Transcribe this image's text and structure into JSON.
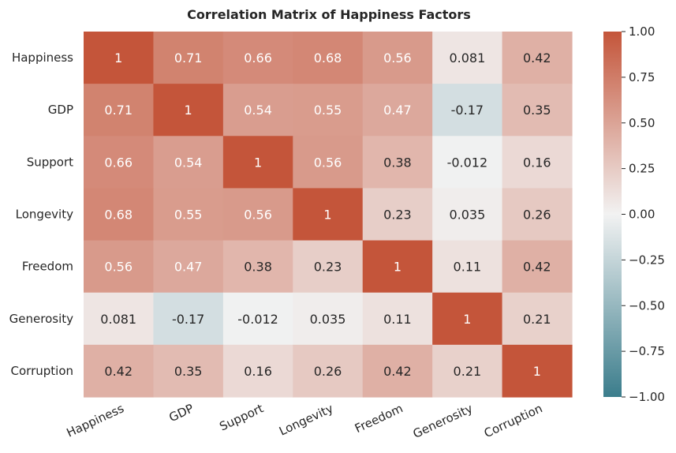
{
  "chart_data": {
    "type": "heatmap",
    "title": "Correlation Matrix of Happiness Factors",
    "rows": [
      "Happiness",
      "GDP",
      "Support",
      "Longevity",
      "Freedom",
      "Generosity",
      "Corruption"
    ],
    "columns": [
      "Happiness",
      "GDP",
      "Support",
      "Longevity",
      "Freedom",
      "Generosity",
      "Corruption"
    ],
    "values": [
      [
        1,
        0.71,
        0.66,
        0.68,
        0.56,
        0.081,
        0.42
      ],
      [
        0.71,
        1,
        0.54,
        0.55,
        0.47,
        -0.17,
        0.35
      ],
      [
        0.66,
        0.54,
        1,
        0.56,
        0.38,
        -0.012,
        0.16
      ],
      [
        0.68,
        0.55,
        0.56,
        1,
        0.23,
        0.035,
        0.26
      ],
      [
        0.56,
        0.47,
        0.38,
        0.23,
        1,
        0.11,
        0.42
      ],
      [
        0.081,
        -0.17,
        -0.012,
        0.035,
        0.11,
        1,
        0.21
      ],
      [
        0.42,
        0.35,
        0.16,
        0.26,
        0.42,
        0.21,
        1
      ]
    ],
    "labels": [
      [
        "1",
        "0.71",
        "0.66",
        "0.68",
        "0.56",
        "0.081",
        "0.42"
      ],
      [
        "0.71",
        "1",
        "0.54",
        "0.55",
        "0.47",
        "-0.17",
        "0.35"
      ],
      [
        "0.66",
        "0.54",
        "1",
        "0.56",
        "0.38",
        "-0.012",
        "0.16"
      ],
      [
        "0.68",
        "0.55",
        "0.56",
        "1",
        "0.23",
        "0.035",
        "0.26"
      ],
      [
        "0.56",
        "0.47",
        "0.38",
        "0.23",
        "1",
        "0.11",
        "0.42"
      ],
      [
        "0.081",
        "-0.17",
        "-0.012",
        "0.035",
        "0.11",
        "1",
        "0.21"
      ],
      [
        "0.42",
        "0.35",
        "0.16",
        "0.26",
        "0.42",
        "0.21",
        "1"
      ]
    ],
    "colorbar": {
      "range": [
        -1,
        1
      ],
      "ticks": [
        1,
        0.75,
        0.5,
        0.25,
        0,
        -0.25,
        -0.5,
        -0.75,
        -1
      ],
      "tick_labels": [
        "1.00",
        "0.75",
        "0.50",
        "0.25",
        "0.00",
        "−0.25",
        "−0.50",
        "−0.75",
        "−1.00"
      ],
      "color_low": "#3b7d8c",
      "color_mid": "#f2f2f2",
      "color_high": "#c4553a"
    },
    "text_color_light": "#ffffff",
    "text_color_dark": "#262626"
  }
}
